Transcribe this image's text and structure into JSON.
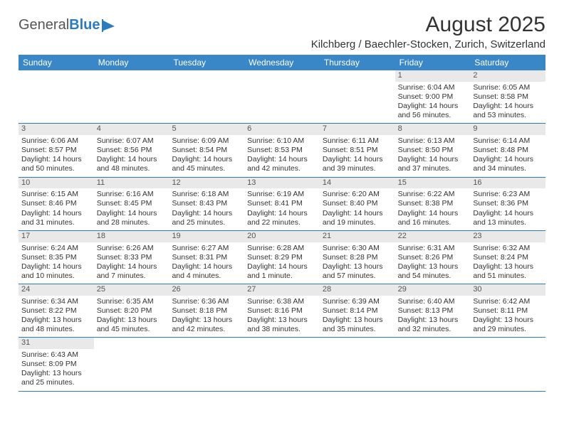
{
  "logo": {
    "text1": "General",
    "text2": "Blue"
  },
  "title": "August 2025",
  "location": "Kilchberg / Baechler-Stocken, Zurich, Switzerland",
  "colors": {
    "header_bg": "#3a87c8",
    "week_border": "#2b7bbf",
    "daynum_bg": "#e9e9e9",
    "text": "#333333"
  },
  "dow": [
    "Sunday",
    "Monday",
    "Tuesday",
    "Wednesday",
    "Thursday",
    "Friday",
    "Saturday"
  ],
  "weeks": [
    [
      {
        "n": "",
        "sr": "",
        "ss": "",
        "dl": ""
      },
      {
        "n": "",
        "sr": "",
        "ss": "",
        "dl": ""
      },
      {
        "n": "",
        "sr": "",
        "ss": "",
        "dl": ""
      },
      {
        "n": "",
        "sr": "",
        "ss": "",
        "dl": ""
      },
      {
        "n": "",
        "sr": "",
        "ss": "",
        "dl": ""
      },
      {
        "n": "1",
        "sr": "Sunrise: 6:04 AM",
        "ss": "Sunset: 9:00 PM",
        "dl": "Daylight: 14 hours and 56 minutes."
      },
      {
        "n": "2",
        "sr": "Sunrise: 6:05 AM",
        "ss": "Sunset: 8:58 PM",
        "dl": "Daylight: 14 hours and 53 minutes."
      }
    ],
    [
      {
        "n": "3",
        "sr": "Sunrise: 6:06 AM",
        "ss": "Sunset: 8:57 PM",
        "dl": "Daylight: 14 hours and 50 minutes."
      },
      {
        "n": "4",
        "sr": "Sunrise: 6:07 AM",
        "ss": "Sunset: 8:56 PM",
        "dl": "Daylight: 14 hours and 48 minutes."
      },
      {
        "n": "5",
        "sr": "Sunrise: 6:09 AM",
        "ss": "Sunset: 8:54 PM",
        "dl": "Daylight: 14 hours and 45 minutes."
      },
      {
        "n": "6",
        "sr": "Sunrise: 6:10 AM",
        "ss": "Sunset: 8:53 PM",
        "dl": "Daylight: 14 hours and 42 minutes."
      },
      {
        "n": "7",
        "sr": "Sunrise: 6:11 AM",
        "ss": "Sunset: 8:51 PM",
        "dl": "Daylight: 14 hours and 39 minutes."
      },
      {
        "n": "8",
        "sr": "Sunrise: 6:13 AM",
        "ss": "Sunset: 8:50 PM",
        "dl": "Daylight: 14 hours and 37 minutes."
      },
      {
        "n": "9",
        "sr": "Sunrise: 6:14 AM",
        "ss": "Sunset: 8:48 PM",
        "dl": "Daylight: 14 hours and 34 minutes."
      }
    ],
    [
      {
        "n": "10",
        "sr": "Sunrise: 6:15 AM",
        "ss": "Sunset: 8:46 PM",
        "dl": "Daylight: 14 hours and 31 minutes."
      },
      {
        "n": "11",
        "sr": "Sunrise: 6:16 AM",
        "ss": "Sunset: 8:45 PM",
        "dl": "Daylight: 14 hours and 28 minutes."
      },
      {
        "n": "12",
        "sr": "Sunrise: 6:18 AM",
        "ss": "Sunset: 8:43 PM",
        "dl": "Daylight: 14 hours and 25 minutes."
      },
      {
        "n": "13",
        "sr": "Sunrise: 6:19 AM",
        "ss": "Sunset: 8:41 PM",
        "dl": "Daylight: 14 hours and 22 minutes."
      },
      {
        "n": "14",
        "sr": "Sunrise: 6:20 AM",
        "ss": "Sunset: 8:40 PM",
        "dl": "Daylight: 14 hours and 19 minutes."
      },
      {
        "n": "15",
        "sr": "Sunrise: 6:22 AM",
        "ss": "Sunset: 8:38 PM",
        "dl": "Daylight: 14 hours and 16 minutes."
      },
      {
        "n": "16",
        "sr": "Sunrise: 6:23 AM",
        "ss": "Sunset: 8:36 PM",
        "dl": "Daylight: 14 hours and 13 minutes."
      }
    ],
    [
      {
        "n": "17",
        "sr": "Sunrise: 6:24 AM",
        "ss": "Sunset: 8:35 PM",
        "dl": "Daylight: 14 hours and 10 minutes."
      },
      {
        "n": "18",
        "sr": "Sunrise: 6:26 AM",
        "ss": "Sunset: 8:33 PM",
        "dl": "Daylight: 14 hours and 7 minutes."
      },
      {
        "n": "19",
        "sr": "Sunrise: 6:27 AM",
        "ss": "Sunset: 8:31 PM",
        "dl": "Daylight: 14 hours and 4 minutes."
      },
      {
        "n": "20",
        "sr": "Sunrise: 6:28 AM",
        "ss": "Sunset: 8:29 PM",
        "dl": "Daylight: 14 hours and 1 minute."
      },
      {
        "n": "21",
        "sr": "Sunrise: 6:30 AM",
        "ss": "Sunset: 8:28 PM",
        "dl": "Daylight: 13 hours and 57 minutes."
      },
      {
        "n": "22",
        "sr": "Sunrise: 6:31 AM",
        "ss": "Sunset: 8:26 PM",
        "dl": "Daylight: 13 hours and 54 minutes."
      },
      {
        "n": "23",
        "sr": "Sunrise: 6:32 AM",
        "ss": "Sunset: 8:24 PM",
        "dl": "Daylight: 13 hours and 51 minutes."
      }
    ],
    [
      {
        "n": "24",
        "sr": "Sunrise: 6:34 AM",
        "ss": "Sunset: 8:22 PM",
        "dl": "Daylight: 13 hours and 48 minutes."
      },
      {
        "n": "25",
        "sr": "Sunrise: 6:35 AM",
        "ss": "Sunset: 8:20 PM",
        "dl": "Daylight: 13 hours and 45 minutes."
      },
      {
        "n": "26",
        "sr": "Sunrise: 6:36 AM",
        "ss": "Sunset: 8:18 PM",
        "dl": "Daylight: 13 hours and 42 minutes."
      },
      {
        "n": "27",
        "sr": "Sunrise: 6:38 AM",
        "ss": "Sunset: 8:16 PM",
        "dl": "Daylight: 13 hours and 38 minutes."
      },
      {
        "n": "28",
        "sr": "Sunrise: 6:39 AM",
        "ss": "Sunset: 8:14 PM",
        "dl": "Daylight: 13 hours and 35 minutes."
      },
      {
        "n": "29",
        "sr": "Sunrise: 6:40 AM",
        "ss": "Sunset: 8:13 PM",
        "dl": "Daylight: 13 hours and 32 minutes."
      },
      {
        "n": "30",
        "sr": "Sunrise: 6:42 AM",
        "ss": "Sunset: 8:11 PM",
        "dl": "Daylight: 13 hours and 29 minutes."
      }
    ],
    [
      {
        "n": "31",
        "sr": "Sunrise: 6:43 AM",
        "ss": "Sunset: 8:09 PM",
        "dl": "Daylight: 13 hours and 25 minutes."
      },
      {
        "n": "",
        "sr": "",
        "ss": "",
        "dl": ""
      },
      {
        "n": "",
        "sr": "",
        "ss": "",
        "dl": ""
      },
      {
        "n": "",
        "sr": "",
        "ss": "",
        "dl": ""
      },
      {
        "n": "",
        "sr": "",
        "ss": "",
        "dl": ""
      },
      {
        "n": "",
        "sr": "",
        "ss": "",
        "dl": ""
      },
      {
        "n": "",
        "sr": "",
        "ss": "",
        "dl": ""
      }
    ]
  ]
}
